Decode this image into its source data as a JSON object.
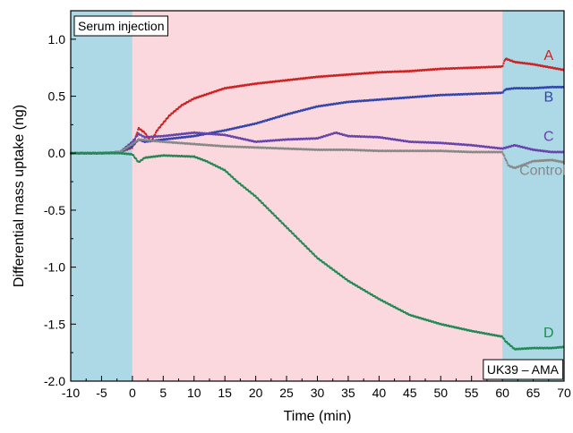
{
  "chart_data": {
    "type": "scatter",
    "xlabel": "Time (min)",
    "ylabel": "Differential mass uptake (ng)",
    "xlim": [
      -10,
      70
    ],
    "ylim": [
      -2.0,
      1.25
    ],
    "xticks": [
      "-10",
      "-5",
      "0",
      "5",
      "10",
      "15",
      "20",
      "25",
      "30",
      "35",
      "40",
      "45",
      "50",
      "55",
      "60",
      "65",
      "70"
    ],
    "yticks": [
      "1.0",
      "0.5",
      "0.0",
      "-0.5",
      "-1.0",
      "-1.5",
      "-2.0"
    ],
    "background_regions": [
      {
        "x": [
          -10,
          0
        ],
        "color": "#add8e6"
      },
      {
        "x": [
          0,
          60
        ],
        "color": "#fbd8dd"
      },
      {
        "x": [
          60,
          70
        ],
        "color": "#add8e6"
      }
    ],
    "annotations": {
      "top_left": "Serum injection",
      "bottom_right": "UK39 – AMA"
    },
    "series": [
      {
        "name": "A",
        "color": "#cc2222",
        "x": [
          -10,
          -5,
          -2,
          0,
          1,
          2,
          3,
          4,
          6,
          8,
          10,
          15,
          20,
          25,
          30,
          35,
          40,
          45,
          50,
          55,
          60,
          60.5,
          62,
          65,
          68,
          70
        ],
        "y": [
          0,
          0,
          0.01,
          0.05,
          0.22,
          0.18,
          0.1,
          0.2,
          0.33,
          0.42,
          0.48,
          0.57,
          0.61,
          0.64,
          0.67,
          0.69,
          0.71,
          0.72,
          0.74,
          0.75,
          0.76,
          0.83,
          0.8,
          0.78,
          0.75,
          0.73
        ]
      },
      {
        "name": "B",
        "color": "#3344aa",
        "x": [
          -10,
          -5,
          -2,
          0,
          1,
          2,
          5,
          10,
          15,
          20,
          25,
          30,
          35,
          40,
          45,
          50,
          55,
          60,
          60.5,
          62,
          65,
          68,
          70
        ],
        "y": [
          0,
          0,
          0.01,
          0.06,
          0.12,
          0.1,
          0.12,
          0.15,
          0.2,
          0.26,
          0.34,
          0.41,
          0.45,
          0.47,
          0.49,
          0.51,
          0.52,
          0.53,
          0.56,
          0.57,
          0.57,
          0.58,
          0.58
        ]
      },
      {
        "name": "C",
        "color": "#6644aa",
        "x": [
          -10,
          -5,
          -2,
          0,
          1,
          2,
          5,
          10,
          15,
          20,
          25,
          30,
          33,
          35,
          40,
          45,
          50,
          55,
          60,
          62,
          65,
          68,
          70
        ],
        "y": [
          0,
          0,
          0.01,
          0.1,
          0.17,
          0.14,
          0.15,
          0.18,
          0.16,
          0.1,
          0.12,
          0.13,
          0.18,
          0.15,
          0.14,
          0.1,
          0.09,
          0.07,
          0.04,
          0.07,
          0.03,
          0.01,
          0.01
        ]
      },
      {
        "name": "Control",
        "color": "#888888",
        "x": [
          -10,
          -5,
          -2,
          0,
          1,
          5,
          10,
          15,
          20,
          25,
          30,
          35,
          40,
          45,
          50,
          55,
          60,
          61,
          62,
          65,
          68,
          70
        ],
        "y": [
          0,
          0,
          0.01,
          0.08,
          0.12,
          0.1,
          0.08,
          0.06,
          0.05,
          0.04,
          0.03,
          0.03,
          0.02,
          0.02,
          0.02,
          0.01,
          0.01,
          -0.11,
          -0.13,
          -0.07,
          -0.06,
          -0.08
        ]
      },
      {
        "name": "D",
        "color": "#228855",
        "x": [
          -10,
          -5,
          -2,
          0,
          1,
          2,
          5,
          10,
          12,
          15,
          17,
          20,
          25,
          30,
          35,
          40,
          45,
          50,
          55,
          60,
          60.5,
          62,
          65,
          68,
          70
        ],
        "y": [
          0,
          0,
          0,
          -0.01,
          -0.08,
          -0.04,
          -0.02,
          -0.03,
          -0.07,
          -0.15,
          -0.25,
          -0.38,
          -0.65,
          -0.92,
          -1.12,
          -1.28,
          -1.42,
          -1.5,
          -1.56,
          -1.61,
          -1.65,
          -1.72,
          -1.71,
          -1.71,
          -1.7
        ]
      }
    ]
  }
}
